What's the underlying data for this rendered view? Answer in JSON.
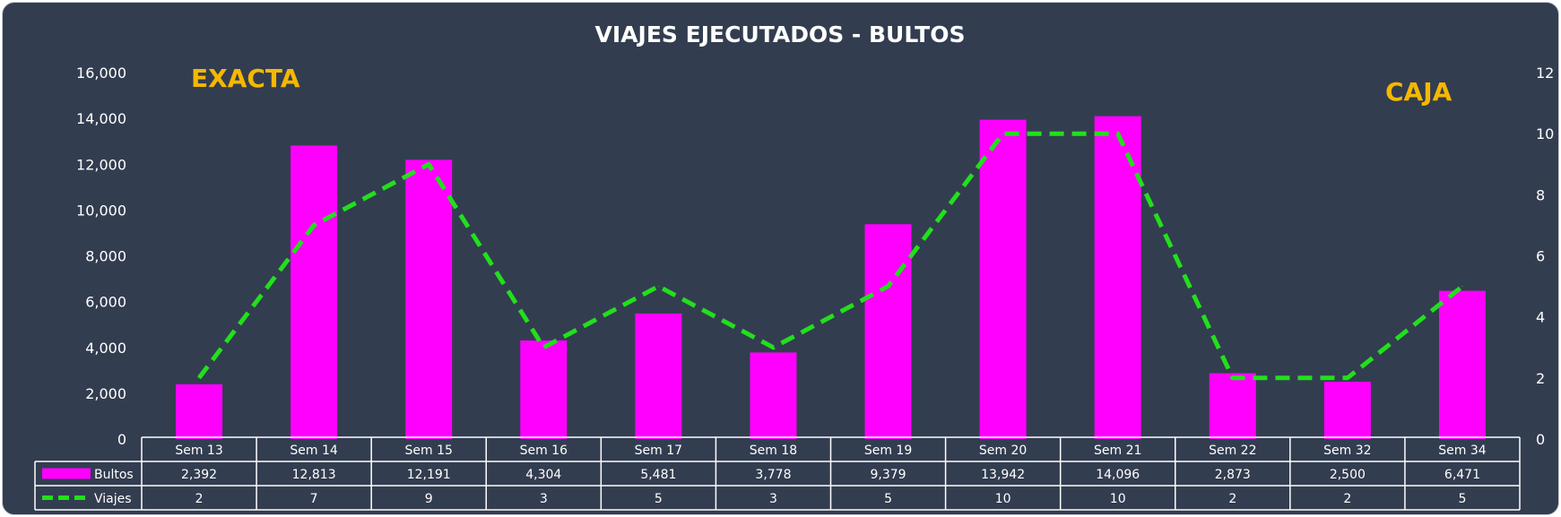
{
  "chart_data": {
    "type": "bar",
    "title": "VIAJES EJECUTADOS - BULTOS",
    "categories": [
      "Sem 13",
      "Sem 14",
      "Sem 15",
      "Sem 16",
      "Sem 17",
      "Sem 18",
      "Sem 19",
      "Sem 20",
      "Sem 21",
      "Sem 22",
      "Sem 32",
      "Sem 34"
    ],
    "series": [
      {
        "name": "Bultos",
        "type": "bar",
        "axis": "left",
        "color": "#ff00ff",
        "values": [
          2392,
          12813,
          12191,
          4304,
          5481,
          3778,
          9379,
          13942,
          14096,
          2873,
          2500,
          6471
        ],
        "labels": [
          "2,392",
          "12,813",
          "12,191",
          "4,304",
          "5,481",
          "3,778",
          "9,379",
          "13,942",
          "14,096",
          "2,873",
          "2,500",
          "6,471"
        ]
      },
      {
        "name": "Viajes",
        "type": "line",
        "style": "dashed",
        "axis": "right",
        "color": "#22e01c",
        "values": [
          2,
          7,
          9,
          3,
          5,
          3,
          5,
          10,
          10,
          2,
          2,
          5
        ],
        "labels": [
          "2",
          "7",
          "9",
          "3",
          "5",
          "3",
          "5",
          "10",
          "10",
          "2",
          "2",
          "5"
        ]
      }
    ],
    "y_left": {
      "min": 0,
      "max": 16000,
      "ticks": [
        "0",
        "2,000",
        "4,000",
        "6,000",
        "8,000",
        "10,000",
        "12,000",
        "14,000",
        "16,000"
      ]
    },
    "y_right": {
      "min": 0,
      "max": 12,
      "ticks": [
        "0",
        "2",
        "4",
        "6",
        "8",
        "10",
        "12"
      ]
    },
    "annotations": [
      {
        "text": "EXACTA",
        "color": "#f5b800"
      },
      {
        "text": "CAJA",
        "color": "#f5b800"
      }
    ],
    "legend": "data-table",
    "grid": false
  }
}
